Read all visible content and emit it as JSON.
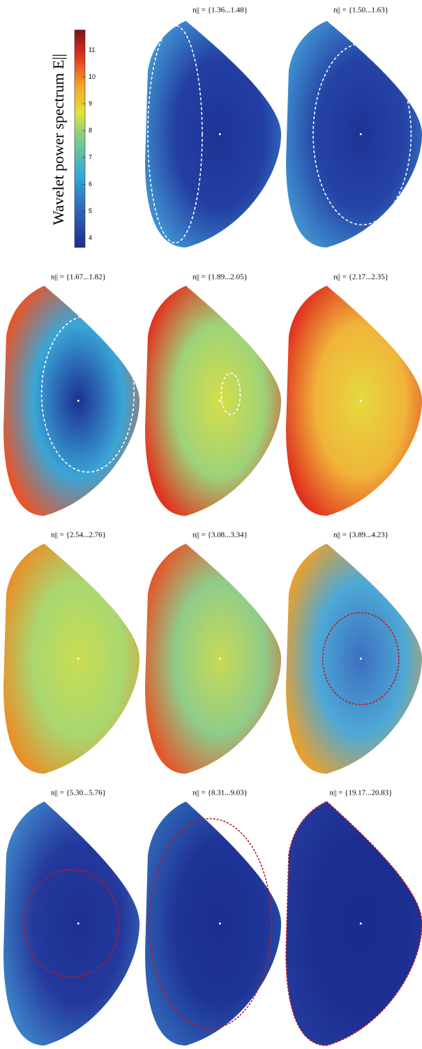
{
  "chart_data": {
    "type": "heatmap",
    "colorbar": {
      "label": "Wavelet power spectrum E||",
      "clim": [
        3.65,
        11.75
      ],
      "ticks": [
        4,
        5,
        6,
        7,
        8,
        9,
        10,
        11
      ],
      "colormap": "jet"
    },
    "panels": [
      {
        "title": "n|| = {1.36...1.48}"
      },
      {
        "title": "n|| = {1.50...1.63}"
      },
      {
        "title": "n|| = {1.67...1.82}"
      },
      {
        "title": "n|| = {1.89...2.05}"
      },
      {
        "title": "n|| = {2.17...2.35}"
      },
      {
        "title": "n|| = {2.54...2.76}"
      },
      {
        "title": "n|| = {3.08...3.34}"
      },
      {
        "title": "n|| = {3.89...4.23}"
      },
      {
        "title": "n|| = {5.30...5.76}"
      },
      {
        "title": "n|| = {8.31...9.03}"
      },
      {
        "title": "n|| = {19.17...20.83}"
      }
    ]
  }
}
